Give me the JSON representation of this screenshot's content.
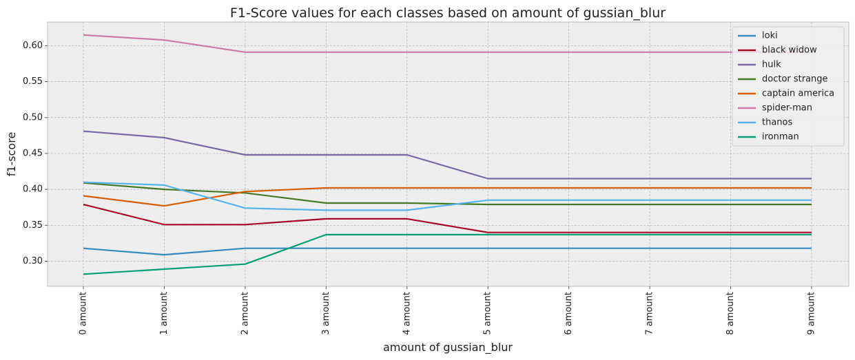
{
  "chart_data": {
    "type": "line",
    "title": "F1-Score values for each classes based on amount of gussian_blur",
    "xlabel": "amount of gussian_blur",
    "ylabel": "f1-score",
    "categories": [
      "0 amount",
      "1 amount",
      "2 amount",
      "3 amount",
      "4 amount",
      "5 amount",
      "6 amount",
      "7 amount",
      "8 amount",
      "9 amount"
    ],
    "yticks": [
      "0.30",
      "0.35",
      "0.40",
      "0.45",
      "0.50",
      "0.55",
      "0.60"
    ],
    "ylim": [
      0.265,
      0.633
    ],
    "grid": true,
    "legend_position": "top-right",
    "series": [
      {
        "name": "loki",
        "color": "#348ABD",
        "values": [
          0.318,
          0.309,
          0.318,
          0.318,
          0.318,
          0.318,
          0.318,
          0.318,
          0.318,
          0.318
        ]
      },
      {
        "name": "black widow",
        "color": "#A60628",
        "values": [
          0.379,
          0.351,
          0.351,
          0.359,
          0.359,
          0.34,
          0.34,
          0.34,
          0.34,
          0.34
        ]
      },
      {
        "name": "hulk",
        "color": "#7A68A6",
        "values": [
          0.481,
          0.472,
          0.448,
          0.448,
          0.448,
          0.415,
          0.415,
          0.415,
          0.415,
          0.415
        ]
      },
      {
        "name": "doctor strange",
        "color": "#467821",
        "values": [
          0.409,
          0.4,
          0.395,
          0.381,
          0.381,
          0.379,
          0.379,
          0.379,
          0.379,
          0.379
        ]
      },
      {
        "name": "captain america",
        "color": "#D55E00",
        "values": [
          0.391,
          0.377,
          0.397,
          0.402,
          0.402,
          0.402,
          0.402,
          0.402,
          0.402,
          0.402
        ]
      },
      {
        "name": "spider-man",
        "color": "#CC79A7",
        "values": [
          0.615,
          0.608,
          0.591,
          0.591,
          0.591,
          0.591,
          0.591,
          0.591,
          0.591,
          0.591
        ]
      },
      {
        "name": "thanos",
        "color": "#56B4E9",
        "values": [
          0.41,
          0.406,
          0.374,
          0.371,
          0.371,
          0.385,
          0.385,
          0.385,
          0.385,
          0.385
        ]
      },
      {
        "name": "ironman",
        "color": "#009E73",
        "values": [
          0.282,
          0.289,
          0.296,
          0.337,
          0.337,
          0.337,
          0.337,
          0.337,
          0.337,
          0.337
        ]
      }
    ]
  }
}
